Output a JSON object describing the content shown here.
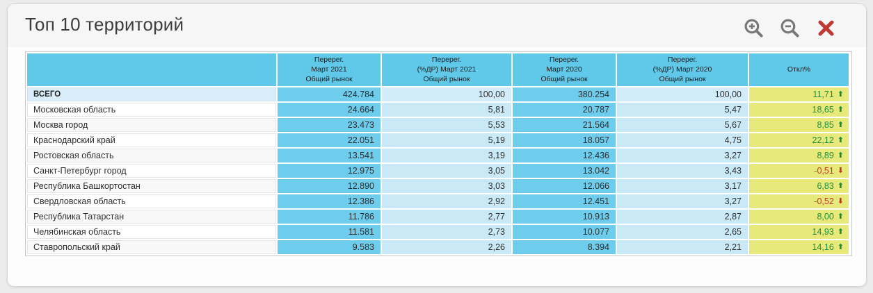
{
  "window": {
    "title": "Топ 10 территорий"
  },
  "toolbar": {
    "zoom_in_icon": "magnifier-plus",
    "zoom_out_icon": "magnifier-minus",
    "close_icon": "red-x-cross"
  },
  "icons": {
    "up_arrow": "⬆",
    "down_arrow": "⬇"
  },
  "colors": {
    "header_cell_blue": "#60c8e8",
    "value_cell_blue": "#6eccec",
    "percent_cell_light_blue": "#c9e9f7",
    "total_row_label_blue": "#daeefa",
    "deviation_cell_yellow": "#e8e97b",
    "positive_text_green": "#1e8e3e",
    "negative_text_red": "#c0392b"
  },
  "table": {
    "columns": [
      {
        "lines": []
      },
      {
        "lines": [
          "Перерег.",
          "Март 2021",
          "Общий рынок"
        ]
      },
      {
        "lines": [
          "Перерег.",
          "(%ДР) Март 2021",
          "Общий рынок"
        ]
      },
      {
        "lines": [
          "Перерег.",
          "Март 2020",
          "Общий рынок"
        ]
      },
      {
        "lines": [
          "Перерег.",
          "(%ДР) Март 2020",
          "Общий рынок"
        ]
      },
      {
        "lines": [
          "Откл%"
        ]
      }
    ],
    "rows": [
      {
        "territory": "ВСЕГО",
        "is_total": true,
        "mar2021": "424.784",
        "pct2021": "100,00",
        "mar2020": "380.254",
        "pct2020": "100,00",
        "deviation": "11,71",
        "trend": "up"
      },
      {
        "territory": "Московская область",
        "mar2021": "24.664",
        "pct2021": "5,81",
        "mar2020": "20.787",
        "pct2020": "5,47",
        "deviation": "18,65",
        "trend": "up"
      },
      {
        "territory": "Москва город",
        "mar2021": "23.473",
        "pct2021": "5,53",
        "mar2020": "21.564",
        "pct2020": "5,67",
        "deviation": "8,85",
        "trend": "up"
      },
      {
        "territory": "Краснодарский край",
        "mar2021": "22.051",
        "pct2021": "5,19",
        "mar2020": "18.057",
        "pct2020": "4,75",
        "deviation": "22,12",
        "trend": "up"
      },
      {
        "territory": "Ростовская область",
        "mar2021": "13.541",
        "pct2021": "3,19",
        "mar2020": "12.436",
        "pct2020": "3,27",
        "deviation": "8,89",
        "trend": "up"
      },
      {
        "territory": "Санкт-Петербург город",
        "mar2021": "12.975",
        "pct2021": "3,05",
        "mar2020": "13.042",
        "pct2020": "3,43",
        "deviation": "-0,51",
        "trend": "down"
      },
      {
        "territory": "Республика Башкортостан",
        "mar2021": "12.890",
        "pct2021": "3,03",
        "mar2020": "12.066",
        "pct2020": "3,17",
        "deviation": "6,83",
        "trend": "up"
      },
      {
        "territory": "Свердловская область",
        "mar2021": "12.386",
        "pct2021": "2,92",
        "mar2020": "12.451",
        "pct2020": "3,27",
        "deviation": "-0,52",
        "trend": "down"
      },
      {
        "territory": "Республика Татарстан",
        "mar2021": "11.786",
        "pct2021": "2,77",
        "mar2020": "10.913",
        "pct2020": "2,87",
        "deviation": "8,00",
        "trend": "up"
      },
      {
        "territory": "Челябинская область",
        "mar2021": "11.581",
        "pct2021": "2,73",
        "mar2020": "10.077",
        "pct2020": "2,65",
        "deviation": "14,93",
        "trend": "up"
      },
      {
        "territory": "Ставропольский край",
        "mar2021": "9.583",
        "pct2021": "2,26",
        "mar2020": "8.394",
        "pct2020": "2,21",
        "deviation": "14,16",
        "trend": "up"
      }
    ]
  }
}
